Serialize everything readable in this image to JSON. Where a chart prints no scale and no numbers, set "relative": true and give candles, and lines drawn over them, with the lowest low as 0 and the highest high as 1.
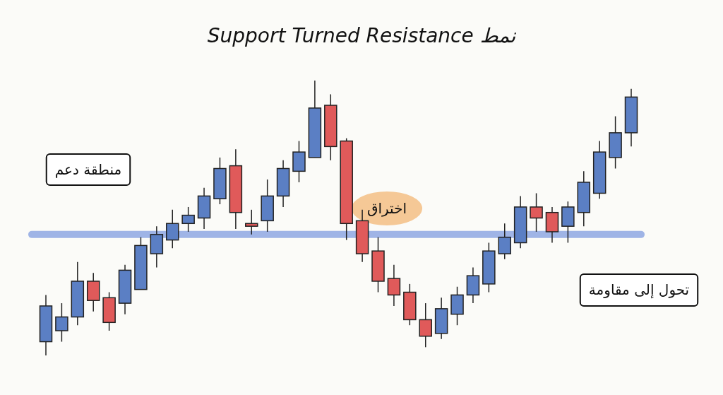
{
  "chart_data": {
    "type": "candlestick",
    "title": "Support Turned Resistance نمط",
    "relative": true,
    "categories": [
      null,
      null,
      null,
      null,
      null,
      null,
      null,
      null,
      null,
      null,
      null,
      null,
      null,
      null,
      null,
      null,
      null,
      null,
      null,
      null,
      null,
      null,
      null,
      null,
      null,
      null,
      null,
      null,
      null,
      null,
      null,
      null,
      null,
      null,
      null,
      null,
      null,
      null
    ],
    "ohlc": [
      [
        0.05,
        0.22,
        0,
        0.18
      ],
      [
        0.09,
        0.19,
        0.05,
        0.14
      ],
      [
        0.14,
        0.34,
        0.11,
        0.27
      ],
      [
        0.27,
        0.3,
        0.16,
        0.2
      ],
      [
        0.21,
        0.23,
        0.09,
        0.12
      ],
      [
        0.19,
        0.33,
        0.15,
        0.31
      ],
      [
        0.24,
        0.43,
        0.24,
        0.4
      ],
      [
        0.37,
        0.47,
        0.32,
        0.44
      ],
      [
        0.42,
        0.53,
        0.39,
        0.48
      ],
      [
        0.48,
        0.54,
        0.45,
        0.51
      ],
      [
        0.5,
        0.61,
        0.46,
        0.58
      ],
      [
        0.57,
        0.72,
        0.55,
        0.68
      ],
      [
        0.69,
        0.75,
        0.46,
        0.52
      ],
      [
        0.48,
        0.53,
        0.44,
        0.47
      ],
      [
        0.49,
        0.64,
        0.45,
        0.58
      ],
      [
        0.58,
        0.71,
        0.54,
        0.68
      ],
      [
        0.67,
        0.78,
        0.63,
        0.74
      ],
      [
        0.72,
        1,
        0.72,
        0.9
      ],
      [
        0.91,
        0.95,
        0.71,
        0.76
      ],
      [
        0.78,
        0.79,
        0.42,
        0.48
      ],
      [
        0.49,
        0.53,
        0.34,
        0.37
      ],
      [
        0.38,
        0.43,
        0.23,
        0.27
      ],
      [
        0.28,
        0.33,
        0.18,
        0.22
      ],
      [
        0.23,
        0.26,
        0.11,
        0.13
      ],
      [
        0.13,
        0.19,
        0.03,
        0.07
      ],
      [
        0.08,
        0.21,
        0.06,
        0.17
      ],
      [
        0.15,
        0.25,
        0.11,
        0.22
      ],
      [
        0.22,
        0.32,
        0.19,
        0.29
      ],
      [
        0.26,
        0.41,
        0.23,
        0.38
      ],
      [
        0.37,
        0.48,
        0.35,
        0.43
      ],
      [
        0.41,
        0.58,
        0.39,
        0.54
      ],
      [
        0.54,
        0.59,
        0.45,
        0.5
      ],
      [
        0.52,
        0.54,
        0.41,
        0.45
      ],
      [
        0.47,
        0.56,
        0.41,
        0.54
      ],
      [
        0.52,
        0.67,
        0.47,
        0.63
      ],
      [
        0.59,
        0.78,
        0.57,
        0.74
      ],
      [
        0.72,
        0.87,
        0.68,
        0.81
      ],
      [
        0.81,
        0.97,
        0.76,
        0.94
      ]
    ],
    "colors": [
      "#5b7fc4",
      "#5b7fc4",
      "#5b7fc4",
      "#e05a5a",
      "#e05a5a",
      "#5b7fc4",
      "#5b7fc4",
      "#5b7fc4",
      "#5b7fc4",
      "#5b7fc4",
      "#5b7fc4",
      "#5b7fc4",
      "#e05a5a",
      "#e05a5a",
      "#5b7fc4",
      "#5b7fc4",
      "#5b7fc4",
      "#5b7fc4",
      "#e05a5a",
      "#e05a5a",
      "#e05a5a",
      "#e05a5a",
      "#e05a5a",
      "#e05a5a",
      "#e05a5a",
      "#5b7fc4",
      "#5b7fc4",
      "#5b7fc4",
      "#5b7fc4",
      "#5b7fc4",
      "#5b7fc4",
      "#e05a5a",
      "#e05a5a",
      "#5b7fc4",
      "#5b7fc4",
      "#5b7fc4",
      "#5b7fc4",
      "#5b7fc4"
    ],
    "ref_lines": [
      {
        "axis": "y",
        "value": 0.44,
        "color": "#9fb4e6"
      }
    ],
    "annotations": [
      "منطقة دعم",
      "اختراق",
      "تحول إلى مقاومة"
    ]
  }
}
